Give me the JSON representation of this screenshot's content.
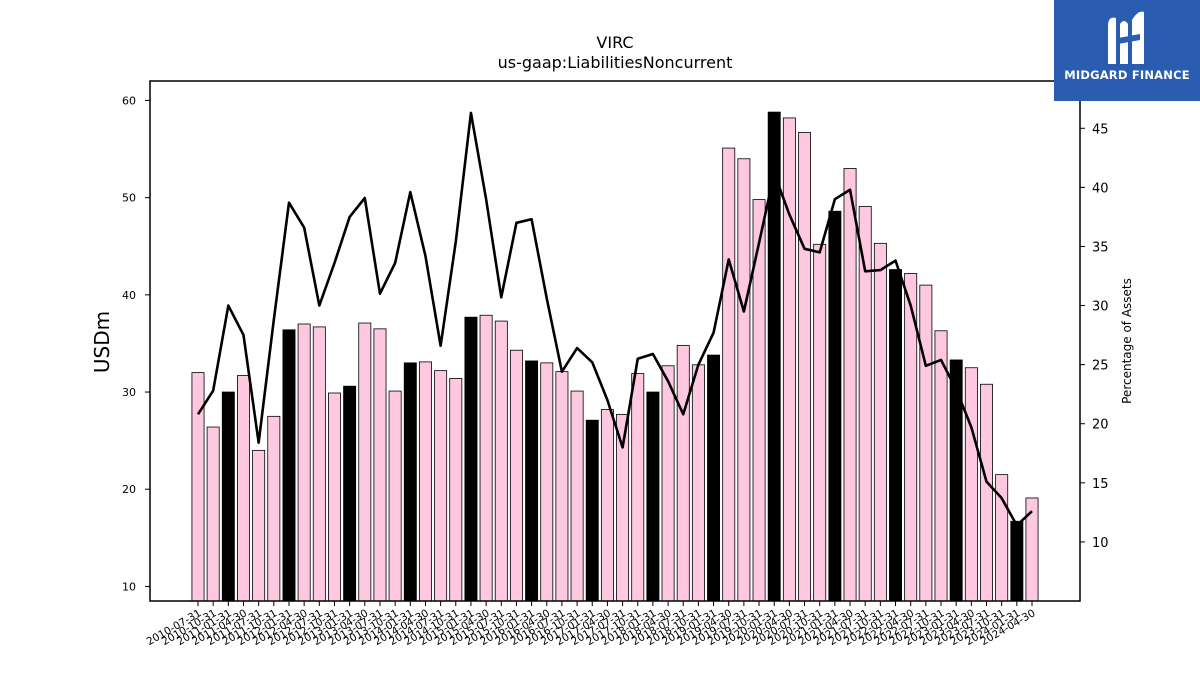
{
  "chart_data": {
    "type": "bar",
    "title": "VIRC",
    "subtitle": "us-gaap:LiabilitiesNoncurrent",
    "ylabel": "USDm",
    "y2label": "Percentage of Assets",
    "ylim": [
      8.5,
      62
    ],
    "y2lim": [
      5.0,
      49.0
    ],
    "yticks": [
      10,
      20,
      30,
      40,
      50,
      60
    ],
    "y2ticks": [
      10,
      15,
      20,
      25,
      30,
      35,
      40,
      45
    ],
    "categories": [
      "2010-07-31",
      "2010-10-31",
      "2011-01-31",
      "2011-04-30",
      "2011-07-31",
      "2011-10-31",
      "2012-01-31",
      "2012-04-30",
      "2012-07-31",
      "2012-10-31",
      "2013-01-31",
      "2013-04-30",
      "2013-07-31",
      "2013-10-31",
      "2014-01-31",
      "2014-04-30",
      "2014-07-31",
      "2014-10-31",
      "2015-01-31",
      "2015-04-30",
      "2015-07-31",
      "2015-10-31",
      "2016-01-31",
      "2016-04-30",
      "2016-07-31",
      "2016-10-31",
      "2017-01-31",
      "2017-04-30",
      "2017-07-31",
      "2017-10-31",
      "2018-01-31",
      "2018-04-30",
      "2018-07-31",
      "2018-10-31",
      "2019-01-31",
      "2019-04-30",
      "2019-07-31",
      "2019-10-31",
      "2020-01-31",
      "2020-04-30",
      "2020-07-31",
      "2020-10-31",
      "2021-01-31",
      "2021-04-30",
      "2021-07-31",
      "2021-10-31",
      "2022-01-31",
      "2022-04-30",
      "2022-07-31",
      "2022-10-31",
      "2023-01-31",
      "2023-04-30",
      "2023-07-31",
      "2023-10-31",
      "2024-01-31",
      "2024-04-30"
    ],
    "series": [
      {
        "type": "bar",
        "values": [
          32.0,
          26.4,
          30.0,
          31.7,
          24.0,
          27.5,
          36.4,
          37.0,
          36.7,
          29.9,
          30.6,
          37.1,
          36.5,
          30.1,
          33.0,
          33.1,
          32.2,
          31.4,
          37.7,
          37.9,
          37.3,
          34.3,
          33.2,
          33.0,
          32.1,
          30.1,
          27.1,
          28.2,
          27.7,
          31.9,
          30.0,
          32.7,
          34.8,
          32.8,
          33.8,
          55.1,
          54.0,
          49.8,
          58.8,
          58.2,
          56.7,
          45.2,
          48.6,
          53.0,
          49.1,
          45.3,
          42.6,
          42.2,
          41.0,
          36.3,
          33.3,
          32.5,
          30.8,
          21.5,
          16.7,
          19.1
        ],
        "highlight_color": "#000000",
        "color": "#ffc8e1",
        "highlighted": [
          2,
          6,
          10,
          14,
          18,
          22,
          26,
          30,
          34,
          38,
          42,
          46,
          50,
          54
        ]
      },
      {
        "type": "line",
        "axis": "right",
        "values": [
          20.8,
          22.8,
          30.0,
          27.5,
          18.4,
          28.8,
          38.7,
          36.6,
          30.0,
          33.6,
          37.5,
          39.1,
          31.0,
          33.6,
          39.6,
          34.2,
          26.6,
          35.4,
          46.3,
          39.0,
          30.7,
          37.0,
          37.3,
          30.6,
          24.4,
          26.4,
          25.2,
          22.0,
          18.0,
          25.5,
          25.9,
          23.6,
          20.8,
          25.0,
          27.7,
          33.9,
          29.5,
          35.3,
          41.2,
          37.7,
          34.8,
          34.5,
          39.0,
          39.8,
          32.9,
          33.0,
          33.8,
          30.0,
          24.9,
          25.4,
          22.9,
          19.7,
          15.1,
          13.7,
          11.4,
          12.6
        ],
        "color": "#000000"
      }
    ]
  },
  "logo": {
    "text": "MIDGARD FINANCE",
    "bg_color": "#2a5db0"
  }
}
